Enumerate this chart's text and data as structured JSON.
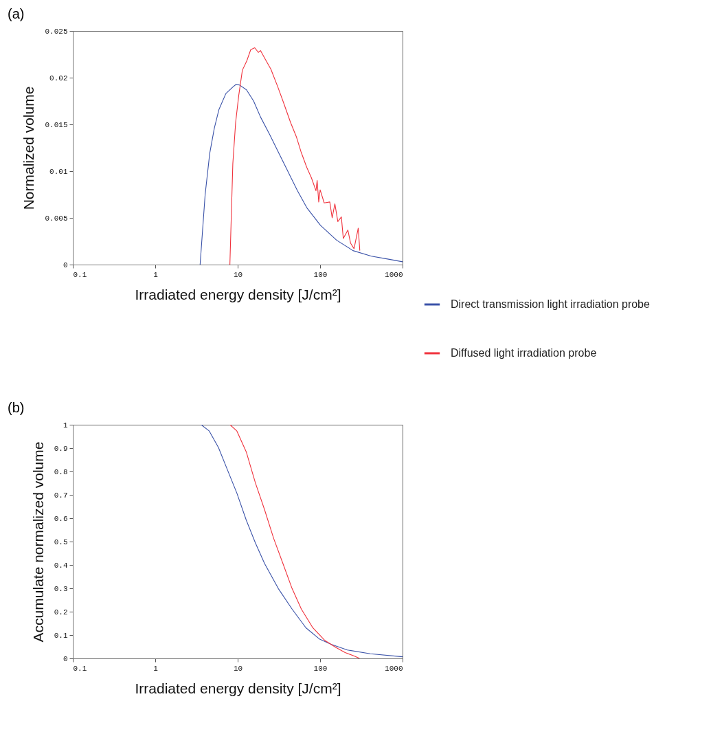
{
  "chart_data": [
    {
      "type": "line",
      "title": "(a)",
      "xlabel": "Irradiated energy density [J/cm²]",
      "ylabel": "Normalized volume",
      "log": "x",
      "legend": "right",
      "xlim": [
        0.1,
        1000
      ],
      "xticks": [
        0.1,
        1,
        10,
        100,
        1000
      ],
      "ylim": [
        0,
        0.025
      ],
      "yticks": [
        0,
        0.005,
        0.01,
        0.015,
        0.02,
        0.025
      ],
      "series": [
        {
          "name": "Direct transmission light irradiation probe",
          "color": "#3a52a8",
          "x": [
            3.5,
            4.03,
            4.58,
            5.21,
            5.93,
            7.19,
            8.73,
            9.62,
            10.6,
            12.8,
            15.6,
            18.9,
            24.5,
            31.7,
            41,
            53.1,
            68.8,
            101,
            159,
            250,
            419,
            658,
            1000
          ],
          "values": [
            0,
            0.0075,
            0.0119,
            0.0146,
            0.0166,
            0.0183,
            0.019,
            0.0193,
            0.0192,
            0.0187,
            0.0175,
            0.0158,
            0.0139,
            0.0119,
            0.0099,
            0.0079,
            0.0061,
            0.0042,
            0.0026,
            0.0015,
            0.0009,
            0.0006,
            0.0003
          ]
        },
        {
          "name": "Diffused light irradiation probe",
          "color": "#f0323c",
          "x": [
            8.04,
            8.73,
            9.44,
            10.3,
            11.4,
            12.9,
            14.4,
            16.1,
            17.8,
            18.9,
            21.5,
            25.3,
            30.7,
            36.1,
            43.8,
            51.4,
            58.5,
            68.8,
            78.3,
            89.1,
            92,
            96.2,
            100,
            112,
            131,
            140,
            151,
            164,
            181,
            191,
            217,
            234,
            258,
            290,
            303
          ],
          "values": [
            0,
            0.0108,
            0.0152,
            0.0181,
            0.0208,
            0.0218,
            0.023,
            0.0232,
            0.0227,
            0.0229,
            0.022,
            0.0209,
            0.019,
            0.0173,
            0.0152,
            0.0137,
            0.0121,
            0.0104,
            0.0093,
            0.0079,
            0.009,
            0.0067,
            0.008,
            0.0066,
            0.0067,
            0.005,
            0.0065,
            0.0046,
            0.0051,
            0.0028,
            0.0037,
            0.0023,
            0.0017,
            0.0039,
            0.0015
          ]
        }
      ]
    },
    {
      "type": "line",
      "title": "(b)",
      "xlabel": "Irradiated energy density [J/cm²]",
      "ylabel": "Accumulate normalized volume",
      "log": "x",
      "xlim": [
        0.1,
        1000
      ],
      "xticks": [
        0.1,
        1,
        10,
        100,
        1000
      ],
      "ylim": [
        0,
        1
      ],
      "yticks": [
        0,
        0.1,
        0.2,
        0.3,
        0.4,
        0.5,
        0.6,
        0.7,
        0.8,
        0.9,
        1
      ],
      "series": [
        {
          "color": "#3a52a8",
          "x": [
            3.61,
            4.52,
            5.85,
            7.57,
            9.78,
            12.7,
            16.4,
            21.2,
            31.1,
            45.7,
            67.3,
            98.9,
            136,
            214,
            407,
            1000
          ],
          "values": [
            1,
            0.973,
            0.902,
            0.804,
            0.707,
            0.592,
            0.494,
            0.406,
            0.299,
            0.211,
            0.131,
            0.082,
            0.06,
            0.036,
            0.02,
            0.007
          ]
        },
        {
          "color": "#f0323c",
          "x": [
            8.07,
            9.78,
            12.7,
            16.4,
            21.2,
            27.4,
            35.4,
            45.7,
            59.2,
            81.6,
            113,
            155,
            201,
            259,
            301
          ],
          "values": [
            1,
            0.973,
            0.884,
            0.751,
            0.636,
            0.512,
            0.406,
            0.299,
            0.211,
            0.131,
            0.078,
            0.047,
            0.025,
            0.01,
            0
          ]
        }
      ]
    }
  ]
}
